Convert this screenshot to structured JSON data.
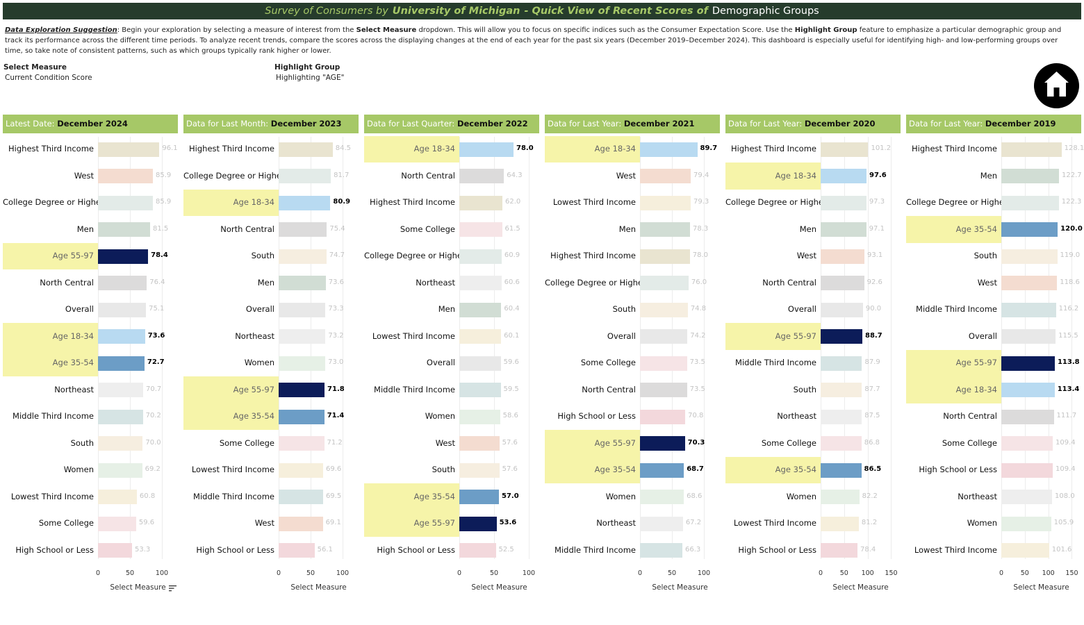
{
  "header": {
    "title_part1": "Survey of Consumers by",
    "title_part2": "University of Michigan",
    "title_part3": "- Quick View of Recent Scores of",
    "title_part4": "Demographic Groups"
  },
  "suggestion": {
    "lead": "Data Exploration Suggestion",
    "text1": ": Begin your exploration by selecting a measure of interest from the ",
    "bold1": "Select Measure",
    "text2": " dropdown. This will allow you to focus on specific indices such as the Consumer Expectation Score. Use the ",
    "bold2": "Highlight Group",
    "text3": " feature to emphasize a particular demographic group and track its performance across the different time periods. To analyze recent trends, compare the scores across the displaying changes at the end of each year for the past six years (December 2019–December 2024). This dashboard is especially useful for identifying high- and low-performing groups over time, so take note of consistent patterns, such as which groups typically rank higher or lower."
  },
  "controls": {
    "measure_label": "Select Measure",
    "measure_value": "Current Condition Score",
    "highlight_label": "Highlight Group",
    "highlight_value": "Highlighting \"AGE\""
  },
  "icons": {
    "home": "home-icon",
    "sort": "sort-icon"
  },
  "colors": {
    "header_bg": "#263c2c",
    "accent_green": "#a6c867",
    "highlight_bg": "#f6f4a9",
    "groups": {
      "Highest Third Income": "#e9e4d0",
      "West": "#f4dcd0",
      "College Degree or Higher": "#e3ebe8",
      "Men": "#d1ddd4",
      "Age 55-97": "#0c1c59",
      "North Central": "#dcdbdb",
      "Overall": "#e8e8e8",
      "Age 18-34": "#b8daf1",
      "Age 35-54": "#6c9dc6",
      "Northeast": "#eeeeee",
      "Middle Third Income": "#d6e4e4",
      "South": "#f6eee0",
      "Women": "#e6f0e6",
      "Lowest Third Income": "#f6efdc",
      "Some College": "#f6e4e6",
      "High School or Less": "#f3d8dc"
    }
  },
  "chart_data": [
    {
      "type": "bar",
      "header_label": "Latest Date:",
      "header_date": "December 2024",
      "axis_label": "Select Measure",
      "ticks": [
        0,
        50,
        100
      ],
      "xlim": [
        0,
        125
      ],
      "highlight_group": "AGE",
      "categories": [
        "Highest Third Income",
        "West",
        "College Degree or Higher",
        "Men",
        "Age 55-97",
        "North Central",
        "Overall",
        "Age 18-34",
        "Age 35-54",
        "Northeast",
        "Middle Third Income",
        "South",
        "Women",
        "Lowest Third Income",
        "Some College",
        "High School or Less"
      ],
      "values": [
        96.1,
        85.9,
        85.9,
        81.5,
        78.4,
        76.4,
        75.1,
        73.6,
        72.7,
        70.7,
        70.2,
        70.0,
        69.2,
        60.8,
        59.6,
        53.3
      ]
    },
    {
      "type": "bar",
      "header_label": "Data for Last Month:",
      "header_date": "December 2023",
      "axis_label": "Select Measure",
      "ticks": [
        0,
        50,
        100
      ],
      "xlim": [
        0,
        125
      ],
      "highlight_group": "AGE",
      "categories": [
        "Highest Third Income",
        "College Degree or Higher",
        "Age 18-34",
        "North Central",
        "South",
        "Men",
        "Overall",
        "Northeast",
        "Women",
        "Age 55-97",
        "Age 35-54",
        "Some College",
        "Lowest Third Income",
        "Middle Third Income",
        "West",
        "High School or Less"
      ],
      "values": [
        84.5,
        81.7,
        80.9,
        75.4,
        74.7,
        73.6,
        73.3,
        73.2,
        73.0,
        71.8,
        71.4,
        71.2,
        69.6,
        69.5,
        69.1,
        56.1
      ]
    },
    {
      "type": "bar",
      "header_label": "Data for Last Quarter:",
      "header_date": "December 2022",
      "axis_label": "Select Measure",
      "ticks": [
        0,
        50,
        100
      ],
      "xlim": [
        0,
        115
      ],
      "highlight_group": "AGE",
      "categories": [
        "Age 18-34",
        "North Central",
        "Highest Third Income",
        "Some College",
        "College Degree or Higher",
        "Northeast",
        "Men",
        "Lowest Third Income",
        "Overall",
        "Middle Third Income",
        "Women",
        "West",
        "South",
        "Age 35-54",
        "Age 55-97",
        "High School or Less"
      ],
      "values": [
        78.0,
        64.3,
        62.0,
        61.5,
        60.9,
        60.6,
        60.4,
        60.1,
        59.6,
        59.5,
        58.6,
        57.6,
        57.6,
        57.0,
        53.6,
        52.5
      ]
    },
    {
      "type": "bar",
      "header_label": "Data for Last Year:",
      "header_date": "December 2021",
      "axis_label": "Select Measure",
      "ticks": [
        0,
        50,
        100
      ],
      "xlim": [
        0,
        125
      ],
      "highlight_group": "AGE",
      "categories": [
        "Age 18-34",
        "West",
        "Lowest Third Income",
        "Men",
        "Highest Third Income",
        "College Degree or Higher",
        "South",
        "Overall",
        "Some College",
        "North Central",
        "High School or Less",
        "Age 55-97",
        "Age 35-54",
        "Women",
        "Northeast",
        "Middle Third Income"
      ],
      "values": [
        89.7,
        79.4,
        79.3,
        78.3,
        78.0,
        76.0,
        74.8,
        74.2,
        73.5,
        73.5,
        70.8,
        70.3,
        68.7,
        68.6,
        67.2,
        66.3
      ]
    },
    {
      "type": "bar",
      "header_label": "Data for Last Year:",
      "header_date": "December 2020",
      "axis_label": "Select Measure",
      "ticks": [
        0,
        50,
        100,
        150
      ],
      "xlim": [
        0,
        170
      ],
      "highlight_group": "AGE",
      "categories": [
        "Highest Third Income",
        "Age 18-34",
        "College Degree or Higher",
        "Men",
        "West",
        "North Central",
        "Overall",
        "Age 55-97",
        "Middle Third Income",
        "South",
        "Northeast",
        "Some College",
        "Age 35-54",
        "Women",
        "Lowest Third Income",
        "High School or Less"
      ],
      "values": [
        101.2,
        97.6,
        97.3,
        97.1,
        93.1,
        92.6,
        90.0,
        88.7,
        87.9,
        87.7,
        87.5,
        86.8,
        86.5,
        82.2,
        81.2,
        78.4
      ]
    },
    {
      "type": "bar",
      "header_label": "Data for Last Year:",
      "header_date": "December 2019",
      "axis_label": "Select Measure",
      "ticks": [
        0,
        50,
        100,
        150
      ],
      "xlim": [
        0,
        170
      ],
      "highlight_group": "AGE",
      "categories": [
        "Highest Third Income",
        "Men",
        "College Degree or Higher",
        "Age 35-54",
        "South",
        "West",
        "Middle Third Income",
        "Overall",
        "Age 55-97",
        "Age 18-34",
        "North Central",
        "Some College",
        "High School or Less",
        "Northeast",
        "Women",
        "Lowest Third Income"
      ],
      "values": [
        128.1,
        122.7,
        122.3,
        120.0,
        119.0,
        118.6,
        116.2,
        115.5,
        113.8,
        113.4,
        111.7,
        109.4,
        109.4,
        108.0,
        105.9,
        101.6
      ]
    }
  ]
}
